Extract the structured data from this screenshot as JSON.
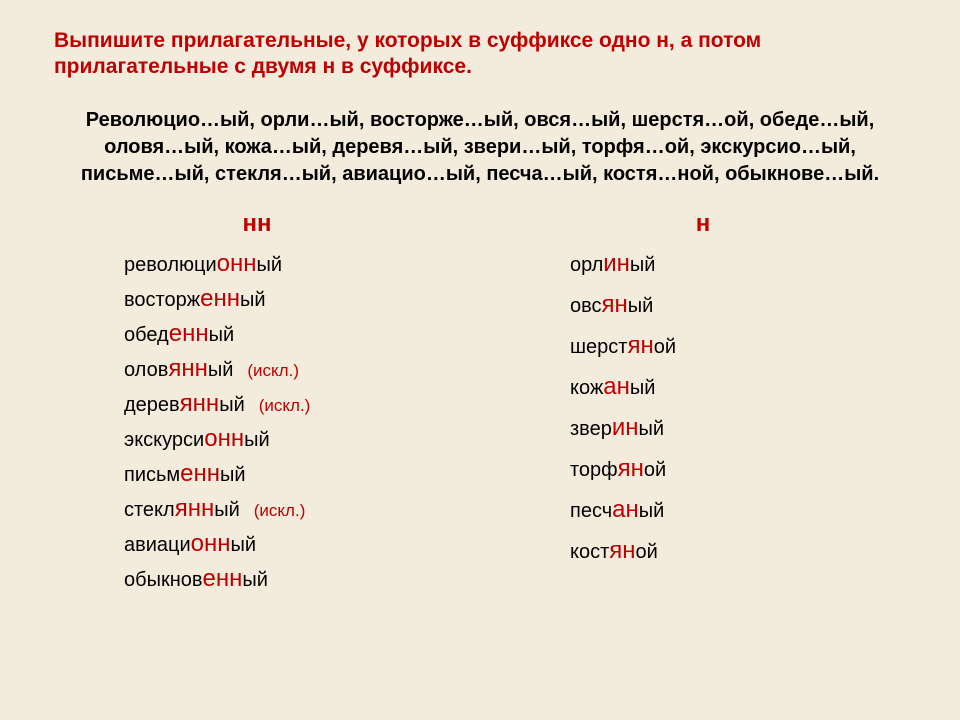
{
  "colors": {
    "background": "#f3ecdd",
    "accent": "#c00000",
    "text": "#000000"
  },
  "task": "Выпишите прилагательные, у которых в суффиксе одно н, а потом прилагательные с двумя н в суффиксе.",
  "exercise": "Революцио…ый, орли…ый, восторже…ый, овся…ый, шерстя…ой, обеде…ый, оловя…ый, кожа…ый, деревя…ый, звери…ый, торфя…ой, экскурсио…ый, письме…ый, стекля…ый, авиацио…ый, песча…ый, костя…ной, обыкнове…ый.",
  "columns": {
    "nn": {
      "header": "нн",
      "items": [
        {
          "pre": "революци",
          "suf": "онн",
          "post": "ый",
          "excl": false
        },
        {
          "pre": "восторж",
          "suf": "енн",
          "post": "ый",
          "excl": false
        },
        {
          "pre": "обед",
          "suf": "енн",
          "post": "ый",
          "excl": false
        },
        {
          "pre": "олов",
          "suf": "янн",
          "post": "ый",
          "excl": true
        },
        {
          "pre": "дерев",
          "suf": "янн",
          "post": "ый",
          "excl": true
        },
        {
          "pre": "экскурси",
          "suf": "онн",
          "post": "ый",
          "excl": false
        },
        {
          "pre": "письм",
          "suf": "енн",
          "post": "ый",
          "excl": false
        },
        {
          "pre": "стекл",
          "suf": "янн",
          "post": "ый",
          "excl": true
        },
        {
          "pre": "авиаци",
          "suf": "онн",
          "post": "ый",
          "excl": false
        },
        {
          "pre": "обыкнов",
          "suf": "енн",
          "post": "ый",
          "excl": false
        }
      ]
    },
    "n": {
      "header": "н",
      "items": [
        {
          "pre": "орл",
          "suf": "ин",
          "post": "ый"
        },
        {
          "pre": "овс",
          "suf": "ян",
          "post": "ый"
        },
        {
          "pre": "шерст",
          "suf": "ян",
          "post": "ой"
        },
        {
          "pre": "кож",
          "suf": "ан",
          "post": "ый"
        },
        {
          "pre": "звер",
          "suf": "ин",
          "post": "ый"
        },
        {
          "pre": "торф",
          "suf": "ян",
          "post": "ой"
        },
        {
          "pre": "песч",
          "suf": "ан",
          "post": "ый"
        },
        {
          "pre": "кост",
          "suf": "ян",
          "post": "ой"
        }
      ]
    }
  },
  "exception_label": "(искл.)",
  "typography": {
    "task_fontsize": 21,
    "exercise_fontsize": 20,
    "header_fontsize": 24,
    "word_fontsize": 20,
    "suffix_fontsize": 24,
    "exception_fontsize": 17
  }
}
